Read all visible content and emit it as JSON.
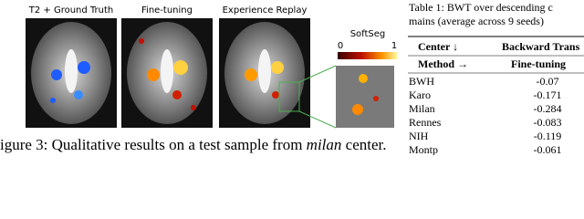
{
  "figure": {
    "panels": [
      "T2 + Ground Truth",
      "Fine-tuning",
      "Experience Replay"
    ],
    "colorbar": {
      "title": "SoftSeg",
      "min": "0",
      "max": "1"
    },
    "caption": {
      "prefix": "igure 3: Qualitative results on a test sample from ",
      "emphasis": "milan",
      "suffix": " center."
    }
  },
  "table": {
    "title": [
      "Table 1: BWT over descending c",
      "mains (average across 9 seeds)"
    ],
    "header": [
      [
        "Center ↓",
        "Backward Trans"
      ],
      [
        "Method →",
        "Fine-tuning"
      ]
    ],
    "rows": [
      [
        "BWH",
        "-0.07"
      ],
      [
        "Karo",
        "-0.171"
      ],
      [
        "Milan",
        "-0.284"
      ],
      [
        "Rennes",
        "-0.083"
      ],
      [
        "NIH",
        "-0.119"
      ],
      [
        "Montp",
        "-0.061"
      ]
    ]
  }
}
